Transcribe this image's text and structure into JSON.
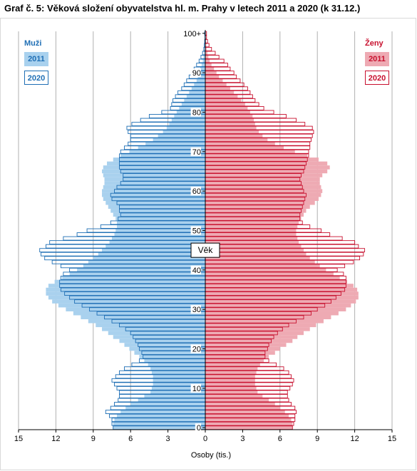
{
  "title": "Graf č. 5: Věková složení obyvatelstva hl. m. Prahy v letech 2011 a 2020 (k 31.12.)",
  "legend": {
    "male_title": "Muži",
    "female_title": "Ženy",
    "year_2011": "2011",
    "year_2020": "2020"
  },
  "colors": {
    "male_2011_fill": "#a9d1ee",
    "male_2020_outline": "#1f6fb5",
    "female_2011_fill": "#eeaab3",
    "female_2020_outline": "#c8102e",
    "grid": "#b0b0b0"
  },
  "chart_data": {
    "type": "bar",
    "orientation": "horizontal",
    "subtype": "population pyramid",
    "title": "Graf č. 5: Věková složení obyvatelstva hl. m. Prahy v letech 2011 a 2020 (k 31.12.)",
    "xlabel": "Osoby (tis.)",
    "ylabel": "Věk",
    "xlim": [
      -15,
      15
    ],
    "x_ticks": [
      "15",
      "12",
      "9",
      "6",
      "3",
      "0",
      "3",
      "6",
      "9",
      "12",
      "15"
    ],
    "y_ticks": [
      "0",
      "10",
      "20",
      "30",
      "40",
      "50",
      "60",
      "70",
      "80",
      "90",
      "100+"
    ],
    "grid": true,
    "legend_position": "top-left (Muži), top-right (Ženy)",
    "age_groups": "0 to 100+ in single years",
    "series": [
      {
        "name": "Muži 2011",
        "side": "left",
        "style": "filled",
        "values": [
          7.4,
          7.4,
          7.3,
          7.1,
          6.8,
          6.4,
          6.0,
          5.4,
          4.9,
          4.4,
          4.3,
          4.2,
          4.2,
          4.2,
          4.3,
          4.4,
          4.6,
          4.9,
          5.3,
          5.7,
          6.1,
          6.5,
          6.9,
          7.4,
          7.8,
          8.3,
          8.8,
          9.4,
          10.0,
          10.6,
          11.2,
          11.8,
          12.3,
          12.6,
          12.8,
          12.8,
          12.6,
          12.1,
          11.5,
          10.9,
          10.3,
          9.8,
          9.4,
          9.0,
          8.6,
          8.3,
          8.0,
          7.7,
          7.5,
          7.3,
          7.2,
          7.1,
          7.1,
          7.2,
          7.4,
          7.6,
          7.8,
          8.0,
          8.2,
          8.3,
          8.3,
          8.2,
          8.1,
          8.1,
          8.2,
          8.3,
          8.2,
          7.9,
          7.4,
          6.8,
          6.1,
          5.4,
          4.8,
          4.2,
          3.8,
          3.4,
          3.1,
          2.9,
          2.7,
          2.5,
          2.3,
          2.1,
          1.9,
          1.7,
          1.5,
          1.3,
          1.1,
          0.9,
          0.7,
          0.6,
          0.5,
          0.4,
          0.3,
          0.2,
          0.15,
          0.1,
          0.07,
          0.05,
          0.03,
          0.02,
          0.02
        ]
      },
      {
        "name": "Muži 2020",
        "side": "left",
        "style": "outline",
        "values": [
          7.4,
          7.5,
          7.5,
          7.7,
          8.0,
          7.6,
          7.3,
          7.0,
          6.9,
          6.9,
          7.1,
          7.3,
          7.5,
          7.2,
          6.9,
          6.5,
          5.9,
          5.3,
          5.0,
          5.1,
          5.3,
          5.4,
          5.6,
          5.8,
          6.0,
          6.4,
          6.9,
          7.5,
          8.1,
          8.7,
          9.3,
          9.9,
          10.5,
          10.9,
          11.3,
          11.6,
          11.7,
          11.7,
          11.6,
          11.4,
          10.9,
          11.6,
          12.3,
          12.9,
          13.2,
          13.3,
          12.8,
          12.5,
          11.4,
          10.3,
          9.5,
          8.4,
          7.6,
          7.0,
          6.8,
          6.9,
          6.9,
          7.1,
          7.5,
          7.6,
          7.3,
          7.1,
          6.8,
          6.6,
          6.6,
          6.8,
          6.9,
          6.9,
          6.9,
          6.9,
          6.8,
          6.5,
          6.2,
          6.0,
          6.0,
          6.2,
          6.3,
          5.9,
          5.2,
          4.5,
          3.5,
          2.8,
          2.7,
          2.6,
          2.4,
          2.2,
          1.9,
          1.7,
          1.5,
          1.3,
          1.1,
          0.9,
          0.7,
          0.5,
          0.35,
          0.22,
          0.12,
          0.08,
          0.05,
          0.03,
          0.05
        ]
      },
      {
        "name": "Ženy 2011",
        "side": "right",
        "style": "filled",
        "values": [
          7.0,
          7.0,
          6.9,
          6.7,
          6.4,
          6.0,
          5.6,
          5.1,
          4.6,
          4.2,
          4.1,
          4.0,
          4.0,
          4.0,
          4.1,
          4.2,
          4.4,
          4.7,
          5.1,
          5.6,
          6.0,
          6.5,
          7.0,
          7.4,
          7.9,
          8.4,
          8.9,
          9.5,
          10.1,
          10.7,
          11.3,
          11.7,
          12.1,
          12.3,
          12.3,
          12.2,
          11.9,
          11.4,
          10.8,
          10.3,
          9.7,
          9.2,
          8.8,
          8.4,
          8.1,
          7.9,
          7.7,
          7.5,
          7.4,
          7.3,
          7.3,
          7.4,
          7.5,
          7.7,
          7.9,
          8.1,
          8.4,
          8.8,
          9.1,
          9.3,
          9.4,
          9.3,
          9.2,
          9.2,
          9.4,
          9.8,
          10.0,
          9.8,
          9.1,
          8.2,
          7.2,
          6.3,
          5.6,
          5.0,
          4.6,
          4.3,
          4.1,
          4.0,
          3.9,
          3.8,
          3.6,
          3.4,
          3.2,
          2.9,
          2.6,
          2.3,
          2.0,
          1.7,
          1.4,
          1.1,
          0.9,
          0.7,
          0.5,
          0.35,
          0.25,
          0.17,
          0.12,
          0.08,
          0.05,
          0.03,
          0.03
        ]
      },
      {
        "name": "Ženy 2020",
        "side": "right",
        "style": "outline",
        "values": [
          7.0,
          7.1,
          7.2,
          7.2,
          7.3,
          7.2,
          6.9,
          6.7,
          6.6,
          6.6,
          6.8,
          7.0,
          7.1,
          6.9,
          6.7,
          6.3,
          5.7,
          5.1,
          4.8,
          4.8,
          5.0,
          5.1,
          5.3,
          5.5,
          5.8,
          6.2,
          6.7,
          7.3,
          7.9,
          8.5,
          9.0,
          9.6,
          10.1,
          10.5,
          10.9,
          11.2,
          11.3,
          11.3,
          11.3,
          11.1,
          10.6,
          11.2,
          11.9,
          12.4,
          12.7,
          12.8,
          12.3,
          12.0,
          11.0,
          10.0,
          9.3,
          8.4,
          7.8,
          7.6,
          7.6,
          7.7,
          7.8,
          7.9,
          8.0,
          8.1,
          7.9,
          7.8,
          7.7,
          7.6,
          7.7,
          7.9,
          8.0,
          8.1,
          8.2,
          8.3,
          8.3,
          8.4,
          8.4,
          8.5,
          8.6,
          8.7,
          8.6,
          8.0,
          7.3,
          6.5,
          5.5,
          4.7,
          4.3,
          4.0,
          3.8,
          3.6,
          3.4,
          3.1,
          2.8,
          2.5,
          2.3,
          2.0,
          1.8,
          1.5,
          1.1,
          0.8,
          0.5,
          0.3,
          0.18,
          0.1,
          0.1
        ]
      }
    ]
  }
}
